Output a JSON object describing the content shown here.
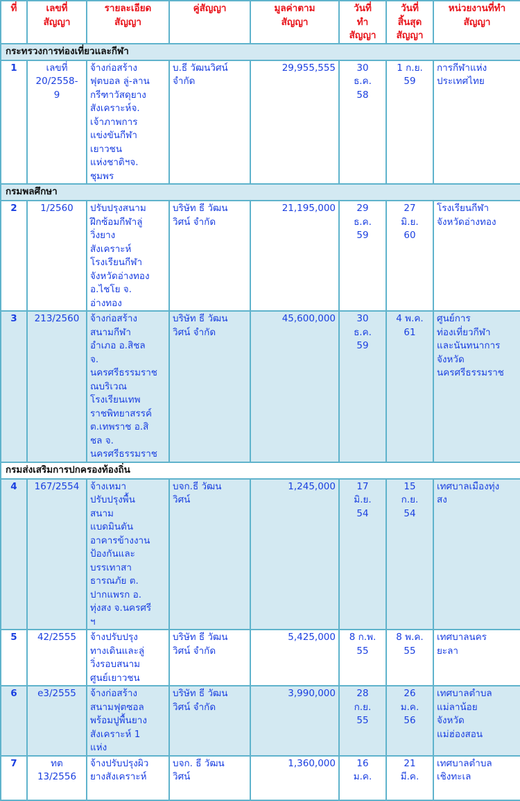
{
  "colors": {
    "header_text": "#e8141b",
    "cell_text": "#1a3fe0",
    "border": "#5fb3cc",
    "shade": "#d3e9f2"
  },
  "headers": [
    "ที่",
    "เลขที่\nสัญญา",
    "รายละเอียด\nสัญญา",
    "คู่สัญญา",
    "มูลค่าตาม\nสัญญา",
    "วันที่\nทำ\nสัญญา",
    "วันที่\nสิ้นสุด\nสัญญา",
    "หน่วยงานที่ทำ\nสัญญา"
  ],
  "rows": [
    {
      "type": "section",
      "title": "กระทรวงการท่องเที่ยวและกีฬา",
      "shade": true
    },
    {
      "type": "row",
      "shade": false,
      "cells": [
        "1",
        "เลขที่\n20/2558-\n9",
        "จ้างก่อสร้าง\nฟุตบอล ลู่-ลาน\nกรีฑาวัสดุยาง\nสังเคราะห์จ.\nเจ้าภาพการ\nแข่งขันกีฬา\nเยาวชน\nแห่งชาติฯจ.\nชุมพร",
        "บ.ธี วัฒนวิศน์\nจำกัด",
        "29,955,555",
        "30\nธ.ค.\n58",
        "1 ก.ย.\n59",
        "การกีฬาแห่ง\nประเทศไทย"
      ]
    },
    {
      "type": "section",
      "title": "กรมพลศึกษา",
      "shade": true
    },
    {
      "type": "row",
      "shade": false,
      "cells": [
        "2",
        "1/2560",
        "ปรับปรุงสนาม\nฝึกซ้อมกีฬาลู่\nวิ่งยาง\nสังเคราะห์\nโรงเรียนกีฬา\nจังหวัดอ่างทอง\nอ.ไชโย จ.\nอ่างทอง",
        "บริษัท ธี วัฒน\nวิศน์ จำกัด",
        "21,195,000",
        "29\nธ.ค.\n59",
        "27\nมิ.ย.\n60",
        "โรงเรียนกีฬา\nจังหวัดอ่างทอง"
      ]
    },
    {
      "type": "row",
      "shade": true,
      "cells": [
        "3",
        "213/2560",
        "จ้างก่อสร้าง\nสนามกีฬา\nอำเภอ อ.สิชล\nจ.\nนครศรีธรรมราช\nณบริเวณ\nโรงเรียนเทพ\nราชพิทยาสรรค์\nต.เทพราช อ.สิ\nชล จ.\nนครศรีธรรมราช",
        "บริษัท ธี วัฒน\nวิศน์ จำกัด",
        "45,600,000",
        "30\nธ.ค.\n59",
        "4 พ.ค.\n61",
        "ศูนย์การ\nท่องเที่ยวกีฬา\nและนันทนาการ\nจังหวัด\nนครศรีธรรมราช"
      ]
    },
    {
      "type": "section",
      "title": "กรมส่งเสริมการปกครองท้องถิ่น",
      "shade": false
    },
    {
      "type": "row",
      "shade": true,
      "cells": [
        "4",
        "167/2554",
        "จ้างเหมา\nปรับปรุงพื้น\nสนาม\nแบดมินตัน\nอาคารข้างงาน\nป้องกันและ\nบรรเทาสา\nธารณภัย ต.\nปากแพรก อ.\nทุ่งสง จ.นครศรี\nฯ",
        "บจก.ธี วัฒน\nวิศน์",
        "1,245,000",
        "17\nมิ.ย.\n54",
        "15\nก.ย.\n54",
        "เทศบาลเมืองทุ่ง\nสง"
      ]
    },
    {
      "type": "row",
      "shade": false,
      "cells": [
        "5",
        "42/2555",
        "จ้างปรับปรุง\nทางเดินและลู่\nวิ่งรอบสนาม\nศูนย์เยาวชน",
        "บริษัท ธี วัฒน\nวิศน์ จำกัด",
        "5,425,000",
        "8 ก.พ.\n55",
        "8 พ.ค.\n55",
        "เทศบาลนคร\nยะลา"
      ]
    },
    {
      "type": "row",
      "shade": true,
      "cells": [
        "6",
        "e3/2555",
        "จ้างก่อสร้าง\nสนามฟุตซอล\nพร้อมปูพื้นยาง\nสังเคราะห์ 1\nแห่ง",
        "บริษัท ธี วัฒน\nวิศน์ จำกัด",
        "3,990,000",
        "28\nก.ย.\n55",
        "26\nม.ค.\n56",
        "เทศบาลตำบล\nแม่ลาน้อย\nจังหวัด\nแม่ฮ่องสอน"
      ]
    },
    {
      "type": "row",
      "shade": false,
      "cells": [
        "7",
        "ทต\n13/2556",
        "จ้างปรับปรุงผิว\nยางสังเคราะห์",
        "บจก. ธี วัฒน\nวิศน์",
        "1,360,000",
        "16\nม.ค.",
        "21\nมี.ค.",
        "เทศบาลตำบล\nเชิงทะเล"
      ]
    }
  ]
}
